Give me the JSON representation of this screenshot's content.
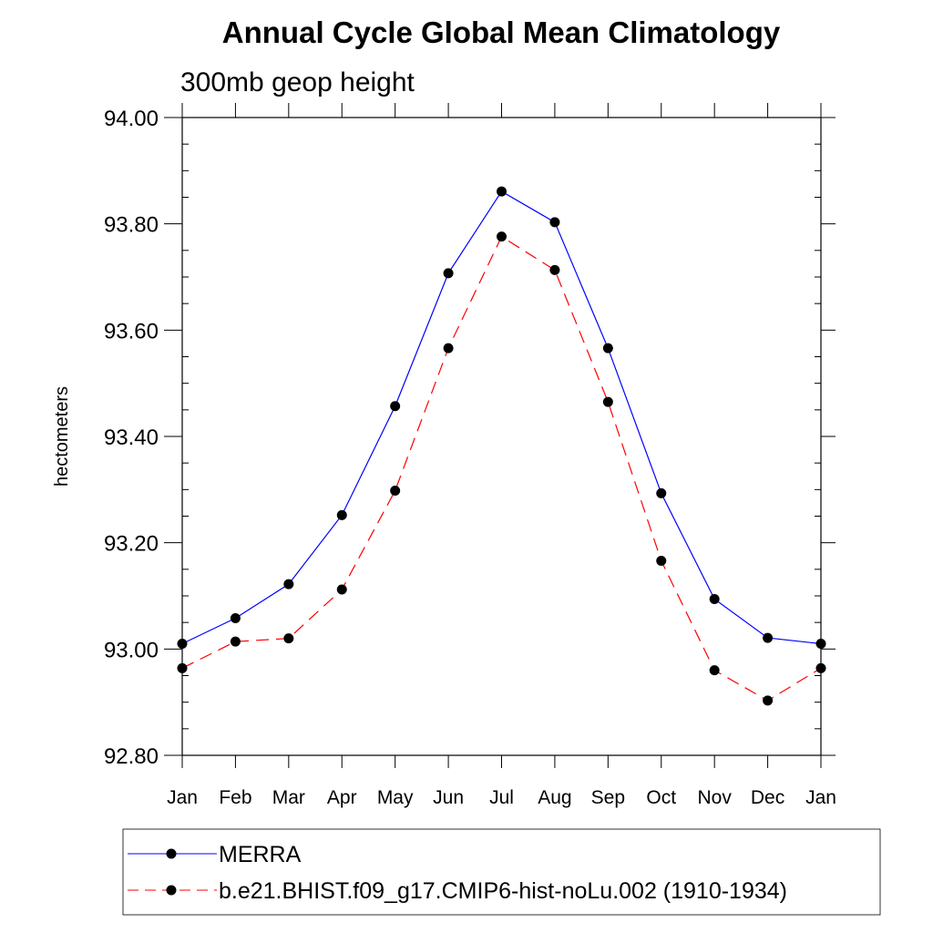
{
  "chart_data": {
    "type": "line",
    "title": "Annual Cycle Global Mean Climatology",
    "subtitle": "300mb geop height",
    "ylabel": "hectometers",
    "xlabel": "",
    "ylim": [
      92.8,
      94.0
    ],
    "ytick_values": [
      92.8,
      93.0,
      93.2,
      93.4,
      93.6,
      93.8,
      94.0
    ],
    "ytick_labels": [
      "92.80",
      "93.00",
      "93.20",
      "93.40",
      "93.60",
      "93.80",
      "94.00"
    ],
    "categories": [
      "Jan",
      "Feb",
      "Mar",
      "Apr",
      "May",
      "Jun",
      "Jul",
      "Aug",
      "Sep",
      "Oct",
      "Nov",
      "Dec",
      "Jan"
    ],
    "series": [
      {
        "name": "MERRA",
        "color": "#0000ff",
        "dash": "solid",
        "marker": "filled-circle",
        "values": [
          93.01,
          93.058,
          93.122,
          93.252,
          93.457,
          93.707,
          93.861,
          93.803,
          93.566,
          93.293,
          93.094,
          93.021,
          93.01
        ]
      },
      {
        "name": "b.e21.BHIST.f09_g17.CMIP6-hist-noLu.002 (1910-1934)",
        "color": "#ff0000",
        "dash": "dashed",
        "marker": "filled-circle",
        "values": [
          92.964,
          93.014,
          93.02,
          93.112,
          93.298,
          93.566,
          93.776,
          93.713,
          93.465,
          93.166,
          92.96,
          92.903,
          92.964
        ]
      }
    ],
    "legend_placement": "bottom",
    "grid": false
  }
}
